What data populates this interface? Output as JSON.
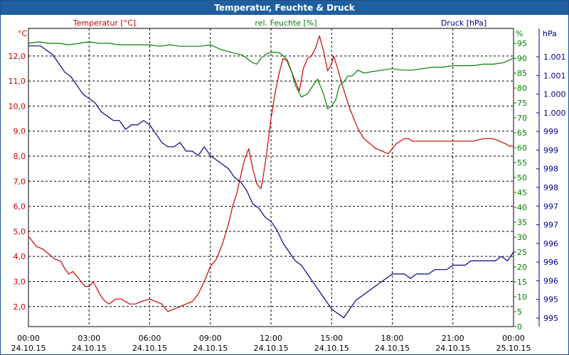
{
  "window": {
    "title": "Temperatur, Feuchte & Druck"
  },
  "colors": {
    "temp": "#cc0000",
    "hum": "#008000",
    "press": "#00008b",
    "grid": "#000000"
  },
  "chart_data": {
    "type": "line",
    "title": "Temperatur, Feuchte & Druck",
    "x_range_hours": [
      0,
      24
    ],
    "x_ticks": [
      {
        "h": 0,
        "time": "00:00",
        "date": "24.10.15"
      },
      {
        "h": 3,
        "time": "03:00",
        "date": "24.10.15"
      },
      {
        "h": 6,
        "time": "06:00",
        "date": "24.10.15"
      },
      {
        "h": 9,
        "time": "09:00",
        "date": "24.10.15"
      },
      {
        "h": 12,
        "time": "12:00",
        "date": "24.10.15"
      },
      {
        "h": 15,
        "time": "15:00",
        "date": "24.10.15"
      },
      {
        "h": 18,
        "time": "18:00",
        "date": "24.10.15"
      },
      {
        "h": 21,
        "time": "21:00",
        "date": "24.10.15"
      },
      {
        "h": 24,
        "time": "00:00",
        "date": "25.10.15"
      }
    ],
    "axes": {
      "temp": {
        "unit": "°C",
        "label": "Temperatur [°C]",
        "range": [
          1.2,
          13.1
        ],
        "ticks": [
          "2,0",
          "3,0",
          "4,0",
          "5,0",
          "6,0",
          "7,0",
          "8,0",
          "9,0",
          "10,0",
          "11,0",
          "12,0"
        ]
      },
      "hum": {
        "unit": "%",
        "label": "rel. Feuchte [%]",
        "range": [
          0,
          100
        ],
        "ticks": [
          "0",
          "5",
          "10",
          "15",
          "20",
          "25",
          "30",
          "35",
          "40",
          "45",
          "50",
          "55",
          "60",
          "65",
          "70",
          "75",
          "80",
          "85",
          "90",
          "95"
        ]
      },
      "press": {
        "unit": "hPa",
        "label": "Druck [hPa]",
        "range": [
          994.8,
          1001.6
        ],
        "ticks": [
          "995",
          "995",
          "996",
          "996",
          "996",
          "997",
          "997",
          "998",
          "998",
          "999",
          "999",
          "1.000",
          "1.000",
          "1.001",
          "1.001"
        ]
      }
    },
    "series": [
      {
        "name": "Temperatur [°C]",
        "axis": "temp",
        "color": "#cc0000",
        "x": [
          0,
          0.2,
          0.4,
          0.7,
          1.0,
          1.3,
          1.6,
          1.8,
          2.0,
          2.2,
          2.4,
          2.6,
          2.8,
          3.0,
          3.2,
          3.4,
          3.6,
          3.8,
          4.0,
          4.3,
          4.6,
          5.0,
          5.3,
          5.6,
          6.0,
          6.3,
          6.6,
          6.9,
          7.2,
          7.5,
          7.8,
          8.1,
          8.4,
          8.7,
          9.0,
          9.3,
          9.6,
          9.9,
          10.1,
          10.3,
          10.5,
          10.7,
          10.9,
          11.1,
          11.3,
          11.5,
          11.6,
          11.8,
          12.0,
          12.2,
          12.4,
          12.6,
          12.8,
          13.0,
          13.2,
          13.4,
          13.6,
          13.8,
          14.0,
          14.2,
          14.4,
          14.6,
          14.8,
          15.0,
          15.1,
          15.3,
          15.5,
          15.7,
          15.9,
          16.1,
          16.3,
          16.6,
          16.9,
          17.2,
          17.5,
          17.8,
          18.0,
          18.2,
          18.4,
          18.6,
          18.8,
          19.0,
          19.5,
          20.0,
          20.5,
          21.0,
          21.5,
          22.0,
          22.5,
          23.0,
          23.3,
          23.6,
          23.8,
          24.0
        ],
        "values": [
          4.8,
          4.6,
          4.4,
          4.3,
          4.1,
          3.9,
          3.8,
          3.5,
          3.3,
          3.4,
          3.2,
          3.0,
          2.8,
          2.8,
          3.0,
          2.7,
          2.4,
          2.2,
          2.1,
          2.3,
          2.3,
          2.1,
          2.1,
          2.2,
          2.3,
          2.2,
          2.1,
          1.8,
          1.9,
          2.0,
          2.1,
          2.2,
          2.5,
          3.0,
          3.6,
          3.9,
          4.5,
          5.3,
          6.0,
          6.5,
          7.2,
          7.9,
          8.3,
          7.5,
          6.9,
          6.7,
          7.1,
          8.2,
          9.5,
          10.5,
          11.3,
          11.9,
          11.8,
          11.4,
          11.0,
          10.6,
          11.5,
          11.9,
          12.0,
          12.3,
          12.8,
          12.2,
          11.4,
          11.7,
          12.0,
          11.5,
          10.9,
          10.4,
          9.9,
          9.5,
          9.1,
          8.7,
          8.5,
          8.3,
          8.2,
          8.1,
          8.3,
          8.5,
          8.6,
          8.7,
          8.7,
          8.6,
          8.6,
          8.6,
          8.6,
          8.6,
          8.6,
          8.6,
          8.7,
          8.7,
          8.6,
          8.5,
          8.4,
          8.4
        ]
      },
      {
        "name": "rel. Feuchte [%]",
        "axis": "hum",
        "color": "#008000",
        "x": [
          0,
          0.5,
          1.0,
          1.5,
          2.0,
          2.5,
          3.0,
          3.5,
          4.0,
          4.5,
          5.0,
          5.5,
          6.0,
          6.5,
          7.0,
          7.5,
          8.0,
          8.5,
          9.0,
          9.5,
          10.0,
          10.3,
          10.6,
          10.9,
          11.1,
          11.3,
          11.5,
          11.8,
          12.0,
          12.3,
          12.5,
          12.8,
          13.0,
          13.2,
          13.5,
          13.8,
          14.0,
          14.3,
          14.6,
          14.8,
          15.0,
          15.2,
          15.4,
          15.6,
          15.8,
          16.0,
          16.3,
          16.6,
          17.0,
          17.5,
          18.0,
          18.5,
          19.0,
          19.5,
          20.0,
          20.5,
          21.0,
          21.5,
          22.0,
          22.5,
          23.0,
          23.5,
          24.0
        ],
        "values": [
          95,
          95.5,
          95,
          95,
          94.5,
          95,
          95.5,
          95,
          95,
          94.5,
          94.5,
          94.5,
          94.5,
          94,
          94.5,
          94,
          94,
          94,
          94.5,
          93,
          92,
          91.5,
          91,
          89.5,
          88.5,
          88,
          90,
          91.5,
          92,
          92,
          91.5,
          89.5,
          86,
          81,
          77,
          78,
          80,
          83,
          78,
          73,
          74,
          76,
          81,
          82,
          84,
          84,
          86,
          85,
          85.5,
          86,
          86.5,
          86,
          86,
          86.5,
          87,
          87,
          87.5,
          87.5,
          87.5,
          88,
          88,
          88.5,
          90
        ]
      },
      {
        "name": "Druck [hPa]",
        "axis": "press",
        "color": "#00008b",
        "x": [
          0,
          0.3,
          0.6,
          0.9,
          1.2,
          1.5,
          1.8,
          2.1,
          2.4,
          2.7,
          3.0,
          3.3,
          3.6,
          3.9,
          4.2,
          4.5,
          4.8,
          5.1,
          5.4,
          5.7,
          6.0,
          6.3,
          6.6,
          6.9,
          7.2,
          7.5,
          7.8,
          8.1,
          8.4,
          8.7,
          9.0,
          9.3,
          9.6,
          9.9,
          10.2,
          10.5,
          10.8,
          11.1,
          11.4,
          11.7,
          12.0,
          12.3,
          12.6,
          12.9,
          13.2,
          13.5,
          13.8,
          14.1,
          14.4,
          14.7,
          15.0,
          15.3,
          15.6,
          15.9,
          16.2,
          16.5,
          16.8,
          17.1,
          17.4,
          17.7,
          18.0,
          18.3,
          18.6,
          18.9,
          19.2,
          19.5,
          19.8,
          20.1,
          20.4,
          20.7,
          21.0,
          21.3,
          21.6,
          21.9,
          22.2,
          22.5,
          22.8,
          23.1,
          23.4,
          23.7,
          24.0
        ],
        "values": [
          1001.2,
          1001.2,
          1001.2,
          1001.1,
          1001.0,
          1000.8,
          1000.6,
          1000.5,
          1000.3,
          1000.1,
          1000.0,
          999.9,
          999.7,
          999.6,
          999.5,
          999.5,
          999.3,
          999.4,
          999.4,
          999.5,
          999.4,
          999.2,
          999.0,
          998.9,
          998.9,
          999.0,
          998.8,
          998.8,
          998.7,
          998.9,
          998.7,
          998.6,
          998.5,
          998.4,
          998.2,
          998.1,
          997.9,
          997.6,
          997.5,
          997.3,
          997.2,
          997.0,
          996.7,
          996.5,
          996.3,
          996.2,
          996.0,
          995.8,
          995.6,
          995.4,
          995.2,
          995.1,
          995.0,
          995.2,
          995.4,
          995.5,
          995.6,
          995.7,
          995.8,
          995.9,
          996.0,
          996.0,
          996.0,
          995.9,
          996.0,
          996.0,
          996.0,
          996.1,
          996.1,
          996.1,
          996.2,
          996.2,
          996.2,
          996.3,
          996.3,
          996.3,
          996.3,
          996.3,
          996.4,
          996.3,
          996.5
        ]
      }
    ]
  }
}
